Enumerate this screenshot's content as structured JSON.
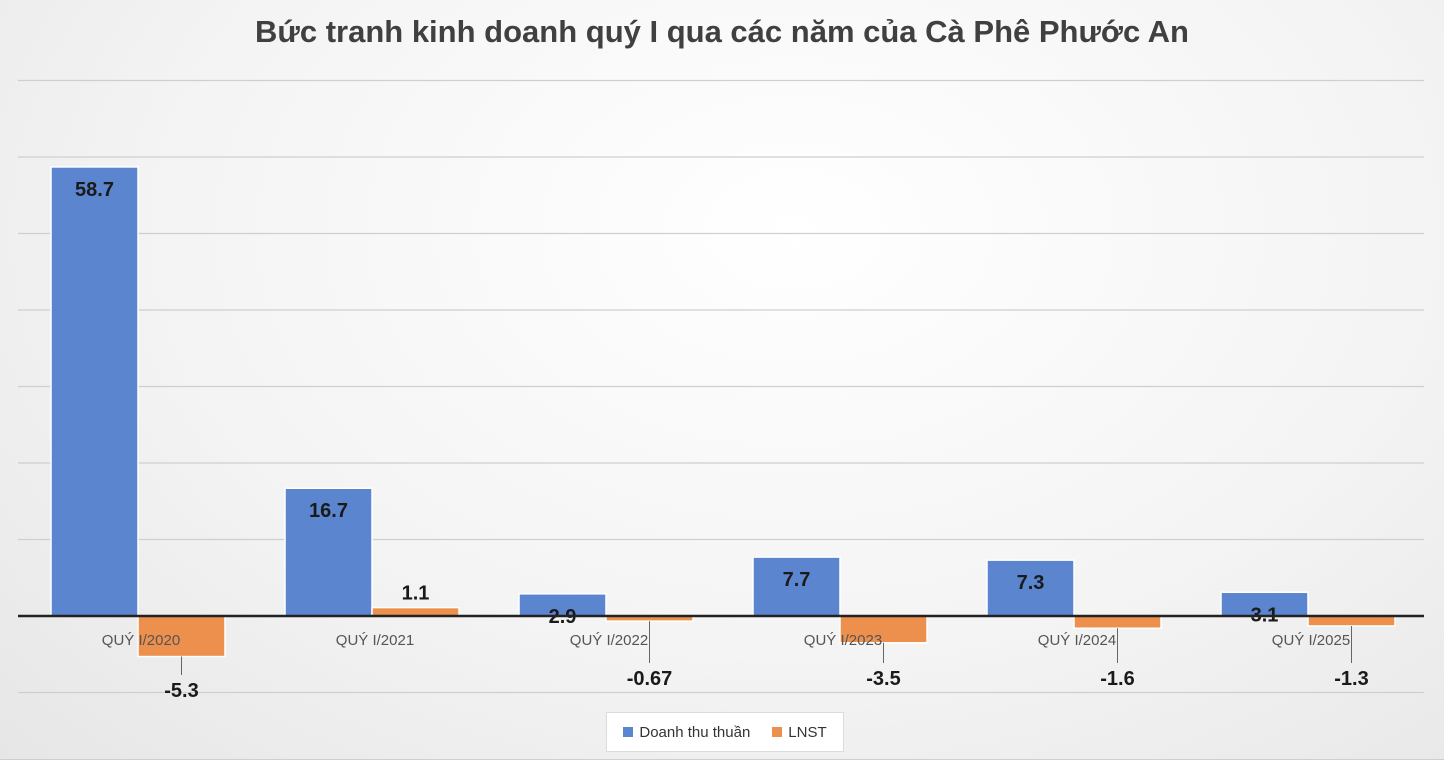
{
  "chart_data": {
    "type": "bar",
    "title": "Bức tranh kinh doanh quý I qua các năm của Cà Phê Phước An",
    "categories": [
      "QUÝ I/2020",
      "QUÝ I/2021",
      "QUÝ I/2022",
      "QUÝ I/2023",
      "QUÝ I/2024",
      "QUÝ I/2025"
    ],
    "series": [
      {
        "name": "Doanh thu thuần",
        "color": "#5b86cf",
        "values": [
          58.7,
          16.7,
          2.9,
          7.7,
          7.3,
          3.1
        ],
        "labels": [
          "58.7",
          "16.7",
          "2.9",
          "7.7",
          "7.3",
          "3.1"
        ]
      },
      {
        "name": "LNST",
        "color": "#ed8f4d",
        "values": [
          -5.3,
          1.1,
          -0.67,
          -3.5,
          -1.6,
          -1.3
        ],
        "labels": [
          "-5.3",
          "1.1",
          "-0.67",
          "-3.5",
          "-1.6",
          "-1.3"
        ]
      }
    ],
    "ylim": [
      -10,
      70
    ],
    "grid": true,
    "legend": "bottom"
  }
}
